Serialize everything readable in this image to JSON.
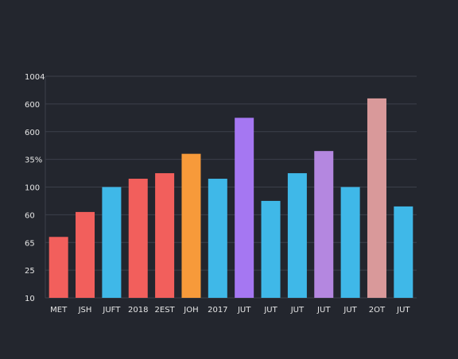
{
  "chart_data": {
    "type": "bar",
    "title": "",
    "xlabel": "",
    "ylabel": "",
    "grid": true,
    "y_ticks": [
      "10",
      "25",
      "65",
      "60",
      "100",
      "35%",
      "600",
      "600",
      "1004"
    ],
    "categories": [
      "MET",
      "JSH",
      "JUFT",
      "2018",
      "2EST",
      "JOH",
      "2017",
      "JUT",
      "JUT",
      "JUT",
      "JUT",
      "JUT",
      "2OT",
      "JUT"
    ],
    "values": [
      2.2,
      3.1,
      4.0,
      4.3,
      4.5,
      5.2,
      4.3,
      6.5,
      3.5,
      4.5,
      5.3,
      4.0,
      7.2,
      3.3
    ],
    "ylim": [
      0,
      8
    ],
    "bar_colors": [
      "#f25f5c",
      "#f25f5c",
      "#3fb8e8",
      "#f25f5c",
      "#f25f5c",
      "#f79a3a",
      "#3fb8e8",
      "#a577f2",
      "#3fb8e8",
      "#3fb8e8",
      "#b487e0",
      "#3fb8e8",
      "#d9999a",
      "#3fb8e8"
    ]
  },
  "colors": {
    "background": "#23262e",
    "grid": "#3c404b",
    "tick_text": "#e6e6e6"
  }
}
